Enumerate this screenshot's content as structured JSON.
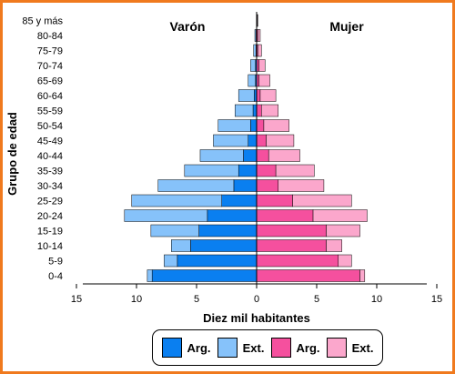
{
  "chart_data": {
    "type": "bar",
    "orientation": "horizontal-stacked-population-pyramid",
    "ylabel": "Grupo de edad",
    "xlabel": "Diez mil habitantes",
    "xlim": [
      -15,
      15
    ],
    "x_ticks": [
      -15,
      -10,
      -5,
      0,
      5,
      10,
      15
    ],
    "x_tick_labels": [
      "15",
      "10",
      "5",
      "0",
      "5",
      "10",
      "15"
    ],
    "side_labels": {
      "left": "Varón",
      "right": "Mujer"
    },
    "categories": [
      "0-4",
      "5-9",
      "10-14",
      "15-19",
      "20-24",
      "25-29",
      "30-34",
      "35-39",
      "40-44",
      "45-49",
      "50-54",
      "55-59",
      "60-64",
      "65-69",
      "70-74",
      "75-79",
      "80-84",
      "85 y más"
    ],
    "series": [
      {
        "name": "Arg.",
        "side": "Varón",
        "color": "#0a7ff0",
        "values": [
          8.7,
          6.6,
          5.5,
          4.8,
          4.1,
          2.9,
          1.9,
          1.5,
          1.1,
          0.7,
          0.5,
          0.3,
          0.2,
          0.1,
          0.1,
          0.05,
          0.05,
          0.0
        ]
      },
      {
        "name": "Ext.",
        "side": "Varón",
        "color": "#86c2fa",
        "values": [
          0.4,
          1.1,
          1.6,
          4.0,
          6.9,
          7.5,
          6.3,
          4.5,
          3.6,
          2.9,
          2.7,
          1.5,
          1.3,
          0.6,
          0.4,
          0.2,
          0.1,
          0.0
        ]
      },
      {
        "name": "Arg.",
        "side": "Mujer",
        "color": "#f5509e",
        "values": [
          8.6,
          6.8,
          5.8,
          5.8,
          4.7,
          3.0,
          1.8,
          1.6,
          1.0,
          0.8,
          0.6,
          0.4,
          0.3,
          0.2,
          0.2,
          0.1,
          0.1,
          0.05
        ]
      },
      {
        "name": "Ext.",
        "side": "Mujer",
        "color": "#fba7cc",
        "values": [
          0.4,
          1.1,
          1.3,
          2.8,
          4.5,
          4.9,
          3.8,
          3.2,
          2.6,
          2.3,
          2.1,
          1.4,
          1.3,
          0.9,
          0.5,
          0.3,
          0.2,
          0.05
        ]
      }
    ],
    "legend": {
      "placement": "bottom",
      "items": [
        {
          "label": "Arg.",
          "color": "#0a7ff0"
        },
        {
          "label": "Ext.",
          "color": "#86c2fa"
        },
        {
          "label": "Arg.",
          "color": "#f5509e"
        },
        {
          "label": "Ext.",
          "color": "#fba7cc"
        }
      ]
    },
    "grid": false
  }
}
